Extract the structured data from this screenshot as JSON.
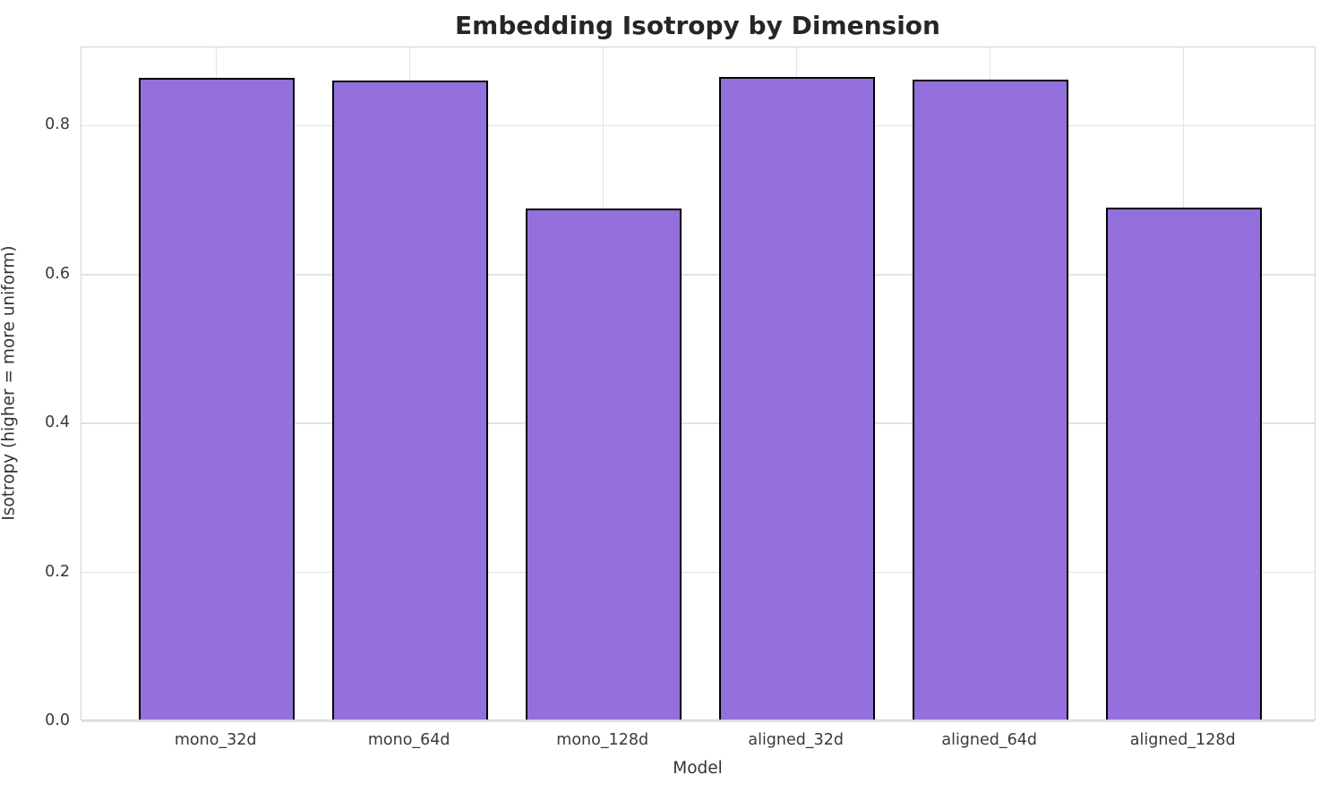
{
  "title": "Embedding Isotropy by Dimension",
  "chart_data": {
    "type": "bar",
    "title": "Embedding Isotropy by Dimension",
    "categories": [
      "mono_32d",
      "mono_64d",
      "mono_128d",
      "aligned_32d",
      "aligned_64d",
      "aligned_128d"
    ],
    "values": [
      0.862,
      0.858,
      0.686,
      0.863,
      0.859,
      0.687
    ],
    "xlabel": "Model",
    "ylabel": "Isotropy (higher = more uniform)",
    "ylim": [
      0,
      0.905
    ],
    "yticks": [
      0.0,
      0.2,
      0.4,
      0.6,
      0.8
    ],
    "ytick_labels": [
      "0.0",
      "0.2",
      "0.4",
      "0.6",
      "0.8"
    ],
    "grid": true,
    "legend": false,
    "bar_color": "#9370DB",
    "bar_edge_color": "#000000"
  },
  "colors": {
    "background": "#ffffff",
    "grid": "#e2e2e2",
    "spine": "#d4d4d4",
    "title_text": "#262626",
    "tick_text": "#3a3a3a",
    "axis_label_text": "#333333"
  }
}
